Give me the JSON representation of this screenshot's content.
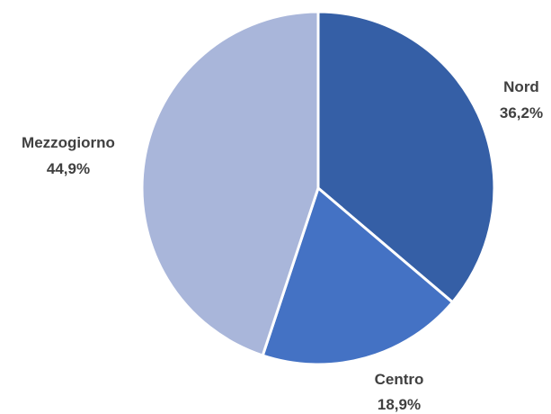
{
  "chart_data": {
    "type": "pie",
    "title": "",
    "legend": "none",
    "slices": [
      {
        "label": "Nord",
        "value": 36.2,
        "value_text": "36,2%",
        "color": "#355FA6"
      },
      {
        "label": "Centro",
        "value": 18.9,
        "value_text": "18,9%",
        "color": "#4472C4"
      },
      {
        "label": "Mezzogiorno",
        "value": 44.9,
        "value_text": "44,9%",
        "color": "#A9B6DA"
      }
    ]
  }
}
